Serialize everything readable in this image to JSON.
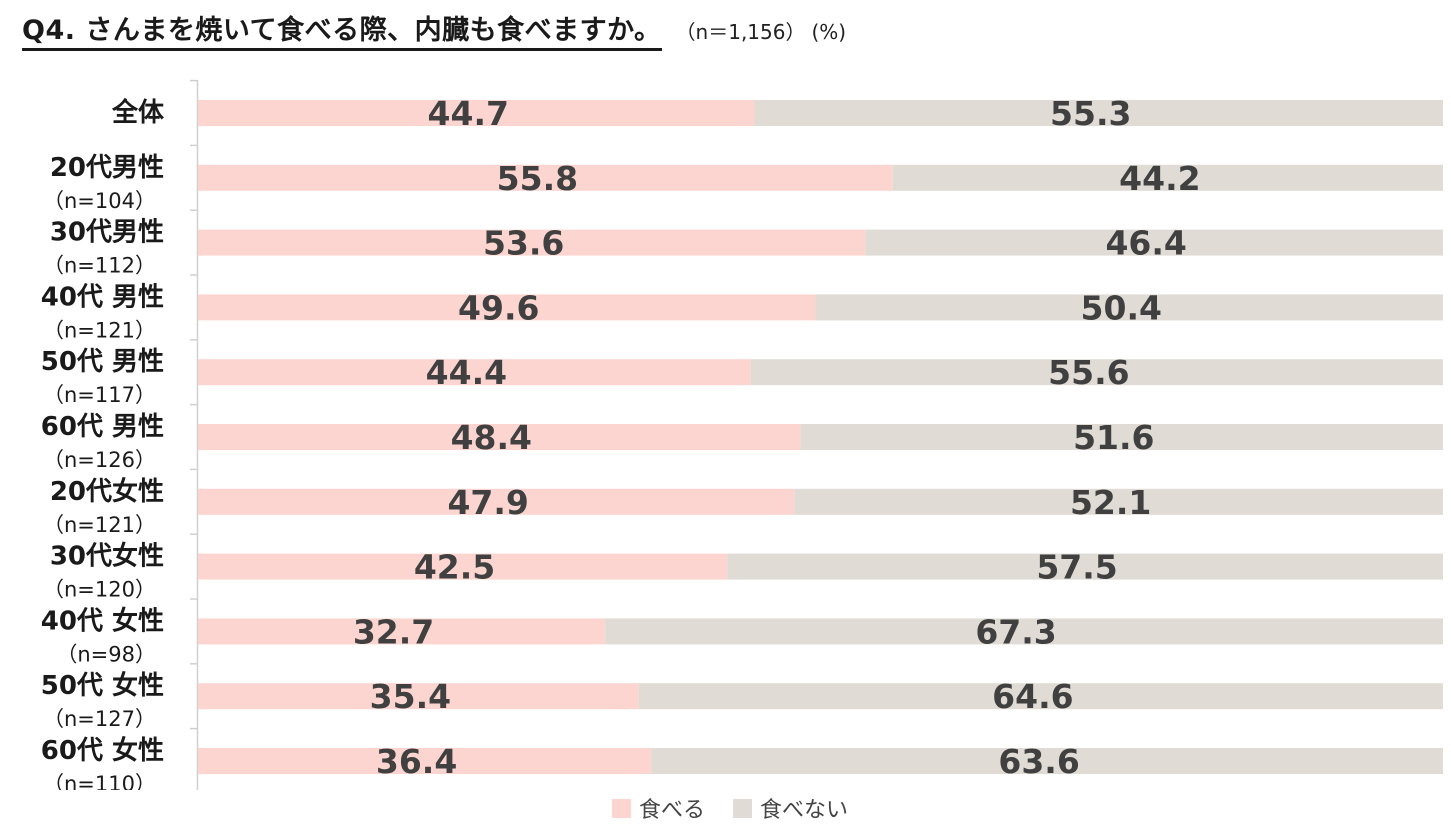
{
  "header": {
    "title": "Q4. さんまを焼いて食べる際、内臓も食べますか。",
    "sample": "（n＝1,156）",
    "unit": "(%)"
  },
  "chart_data": {
    "type": "bar",
    "orientation": "horizontal",
    "stacked": true,
    "percent_stacked": true,
    "title": "Q4. さんまを焼いて食べる際、内臓も食べますか。",
    "categories": [
      {
        "label": "全体",
        "n": ""
      },
      {
        "label": "20代男性",
        "n": "（n=104）"
      },
      {
        "label": "30代男性",
        "n": "（n=112）"
      },
      {
        "label": "40代 男性",
        "n": "（n=121）"
      },
      {
        "label": "50代 男性",
        "n": "（n=117）"
      },
      {
        "label": "60代 男性",
        "n": "（n=126）"
      },
      {
        "label": "20代女性",
        "n": "（n=121）"
      },
      {
        "label": "30代女性",
        "n": "（n=120）"
      },
      {
        "label": "40代 女性",
        "n": "（n=98）"
      },
      {
        "label": "50代 女性",
        "n": "（n=127）"
      },
      {
        "label": "60代 女性",
        "n": "（n=110）"
      }
    ],
    "series": [
      {
        "name": "食べる",
        "color": "#fcd5d0",
        "values": [
          44.7,
          55.8,
          53.6,
          49.6,
          44.4,
          48.4,
          47.9,
          42.5,
          32.7,
          35.4,
          36.4
        ],
        "labels": [
          "44.7",
          "55.8",
          "53.6",
          "49.6",
          "44.4",
          "48.4",
          "47.9",
          "42.5",
          "32.7",
          "35.4",
          "36.4"
        ]
      },
      {
        "name": "食べない",
        "color": "#e0dcd5",
        "values": [
          55.3,
          44.2,
          46.4,
          50.4,
          55.6,
          51.6,
          52.1,
          57.5,
          67.3,
          64.6,
          63.6
        ],
        "labels": [
          "55.3",
          "44.2",
          "46.4",
          "50.4",
          "55.6",
          "51.6",
          "52.1",
          "57.5",
          "67.3",
          "64.6",
          "63.6"
        ]
      }
    ],
    "xlim": [
      0,
      100
    ],
    "grid": false,
    "legend": "bottom",
    "label_color": "#404040",
    "axis_color": "#d0d0d0"
  }
}
